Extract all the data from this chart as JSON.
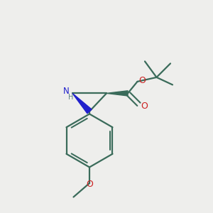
{
  "background_color": "#eeeeec",
  "bond_color": "#3a6b5a",
  "nitrogen_color": "#2020cc",
  "oxygen_color": "#cc2020",
  "nh_color": "#5a8080",
  "fig_width": 3.0,
  "fig_height": 3.0,
  "dpi": 100,
  "xlim": [
    0,
    10
  ],
  "ylim": [
    0,
    10
  ]
}
